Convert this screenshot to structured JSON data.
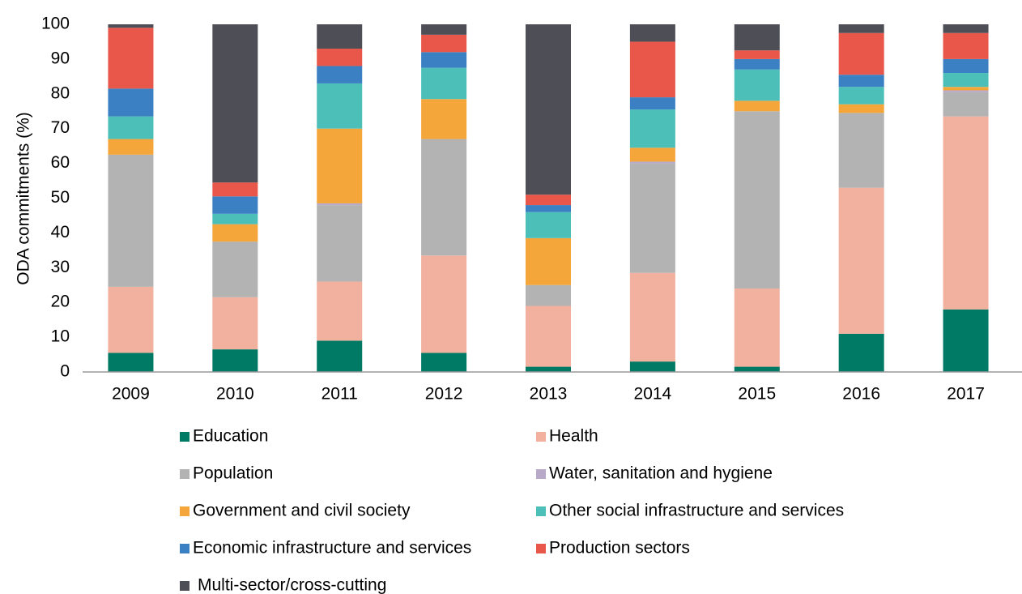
{
  "chart_data": {
    "type": "stacked_bar",
    "y_label": "ODA commitments (%)",
    "categories": [
      "2009",
      "2010",
      "2011",
      "2012",
      "2013",
      "2014",
      "2015",
      "2016",
      "2017"
    ],
    "series": [
      {
        "name": "Education",
        "color": "#007a64",
        "values": [
          5.5,
          6.5,
          9,
          5.5,
          1.5,
          3,
          1.5,
          11,
          18
        ]
      },
      {
        "name": "Health",
        "color": "#f2b09e",
        "values": [
          19,
          15,
          17,
          28,
          17.5,
          25.5,
          22.5,
          42,
          55.5
        ]
      },
      {
        "name": "Population",
        "color": "#b3b3b3",
        "values": [
          38,
          16,
          22,
          33.5,
          6,
          31.5,
          51,
          21.5,
          7
        ]
      },
      {
        "name": "Water, sanitation and hygiene",
        "color": "#b8a9c9",
        "values": [
          0,
          0,
          0.5,
          0,
          0,
          0.5,
          0,
          0,
          0.5
        ]
      },
      {
        "name": "Government and civil society",
        "color": "#f5a63b",
        "values": [
          4.5,
          5,
          21.5,
          11.5,
          13.5,
          4,
          3,
          2.5,
          1
        ]
      },
      {
        "name": "Other social infrastructure and services",
        "color": "#4cbfb9",
        "values": [
          6.5,
          3,
          13,
          9,
          7.5,
          11,
          9,
          5,
          4
        ]
      },
      {
        "name": "Economic infrastructure and services",
        "color": "#3a80c3",
        "values": [
          8,
          5,
          5,
          4.5,
          2,
          3.5,
          3,
          3.5,
          4
        ]
      },
      {
        "name": "Production sectors",
        "color": "#e8574a",
        "values": [
          17.5,
          4,
          5,
          5,
          3,
          16,
          2.5,
          12,
          7.5
        ]
      },
      {
        "name": "Multi-sector/cross-cutting",
        "color": "#4e4e56",
        "values": [
          1,
          45.5,
          7,
          3,
          49,
          5,
          7.5,
          2.5,
          2.5
        ]
      }
    ],
    "ylim": [
      0,
      100
    ],
    "yticks": [
      0,
      10,
      20,
      30,
      40,
      50,
      60,
      70,
      80,
      90,
      100
    ],
    "grid": false
  }
}
